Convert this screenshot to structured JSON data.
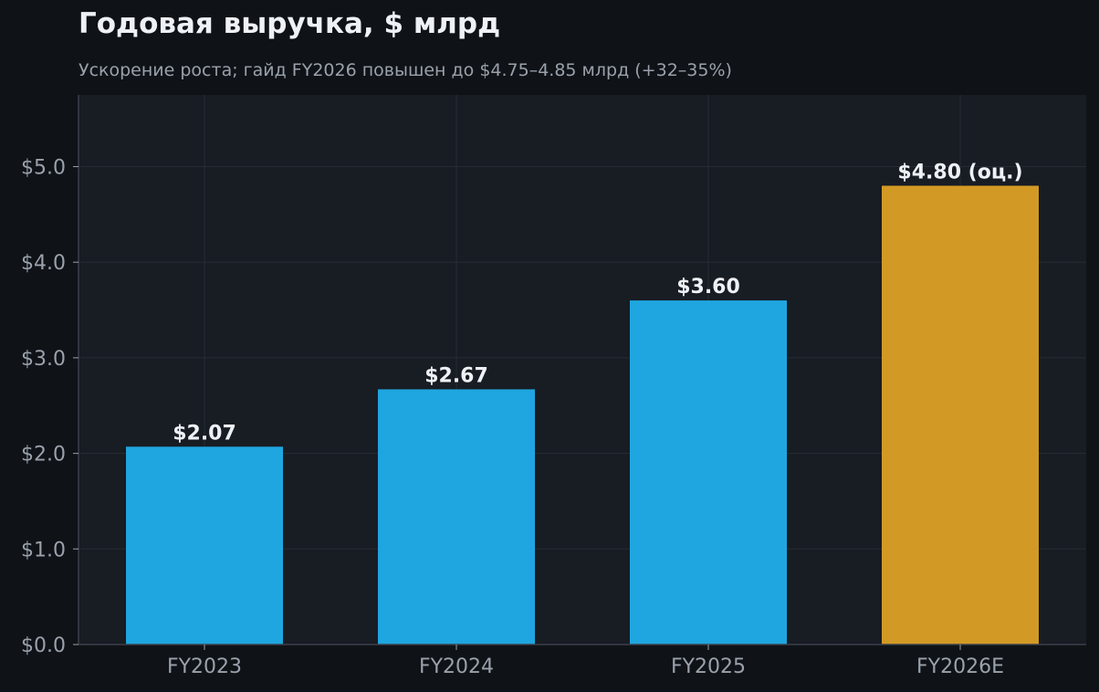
{
  "chart_data": {
    "type": "bar",
    "title": "Годовая выручка, $ млрд",
    "subtitle": "Ускорение роста; гайд FY2026 повышен до $4.75–4.85 млрд (+32–35%)",
    "xlabel": "",
    "ylabel": "",
    "categories": [
      "FY2023",
      "FY2024",
      "FY2025",
      "FY2026E"
    ],
    "values": [
      2.07,
      2.67,
      3.6,
      4.8
    ],
    "data_labels": [
      "$2.07",
      "$2.67",
      "$3.60",
      "$4.80 (оц.)"
    ],
    "bar_colors": [
      "#1fa6e0",
      "#1fa6e0",
      "#1fa6e0",
      "#d29a24"
    ],
    "ylim": [
      0,
      5.75
    ],
    "yticks": [
      0,
      1,
      2,
      3,
      4,
      5
    ],
    "ytick_labels": [
      "$0.0",
      "$1.0",
      "$2.0",
      "$3.0",
      "$4.0",
      "$5.0"
    ],
    "grid": true,
    "legend": "none"
  },
  "colors": {
    "page_background": "#0f1317",
    "plot_background": "#181c23",
    "grid": "#262b34",
    "axis": "#3a404a",
    "tick_text": "#9aa1ab",
    "label_text": "#eef1f5"
  }
}
